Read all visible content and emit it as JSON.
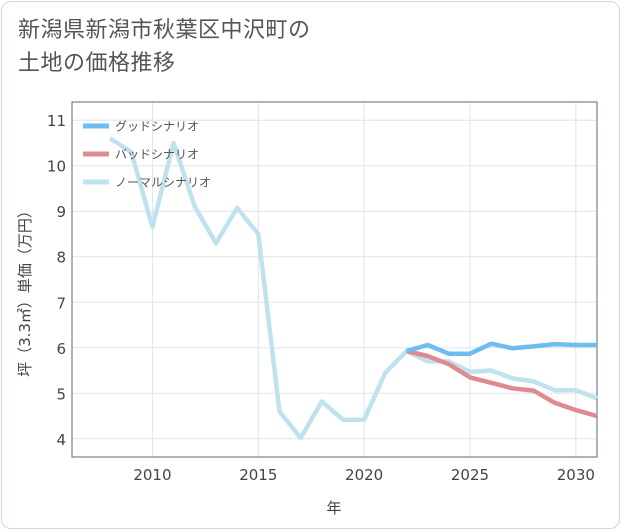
{
  "title": {
    "line1": "新潟県新潟市秋葉区中沢町の",
    "line2": "土地の価格推移"
  },
  "chart_data": {
    "type": "line",
    "title": "新潟県新潟市秋葉区中沢町の土地の価格推移",
    "xlabel": "年",
    "ylabel": "坪（3.3㎡）単価（万円）",
    "xlim": [
      2006.2,
      2031.0
    ],
    "ylim": [
      3.6,
      11.4
    ],
    "x_ticks": [
      2010,
      2015,
      2020,
      2025,
      2030
    ],
    "y_ticks": [
      4,
      5,
      6,
      7,
      8,
      9,
      10,
      11
    ],
    "grid": true,
    "legend_position": "top-left",
    "series": [
      {
        "name": "グッドシナリオ",
        "color": "#6ebdf0",
        "x": [
          2022,
          2023,
          2024,
          2025,
          2026,
          2027,
          2028,
          2029,
          2030,
          2031
        ],
        "y": [
          5.93,
          6.06,
          5.87,
          5.87,
          6.09,
          5.99,
          6.03,
          6.08,
          6.06,
          6.06
        ]
      },
      {
        "name": "バッドシナリオ",
        "color": "#de8a90",
        "x": [
          2022,
          2023,
          2024,
          2025,
          2026,
          2027,
          2028,
          2029,
          2030,
          2031
        ],
        "y": [
          5.93,
          5.82,
          5.64,
          5.35,
          5.23,
          5.11,
          5.06,
          4.79,
          4.63,
          4.5
        ]
      },
      {
        "name": "ノーマルシナリオ",
        "color": "#bfe2ee",
        "x": [
          2008,
          2009,
          2010,
          2011,
          2012,
          2013,
          2014,
          2015,
          2016,
          2017,
          2018,
          2019,
          2020,
          2021,
          2022,
          2023,
          2024,
          2025,
          2026,
          2027,
          2028,
          2029,
          2030,
          2031
        ],
        "y": [
          10.6,
          10.3,
          8.66,
          10.5,
          9.1,
          8.3,
          9.07,
          8.5,
          4.6,
          4.02,
          4.82,
          4.42,
          4.42,
          5.45,
          5.93,
          5.7,
          5.7,
          5.47,
          5.5,
          5.33,
          5.26,
          5.07,
          5.07,
          4.89
        ]
      }
    ]
  }
}
